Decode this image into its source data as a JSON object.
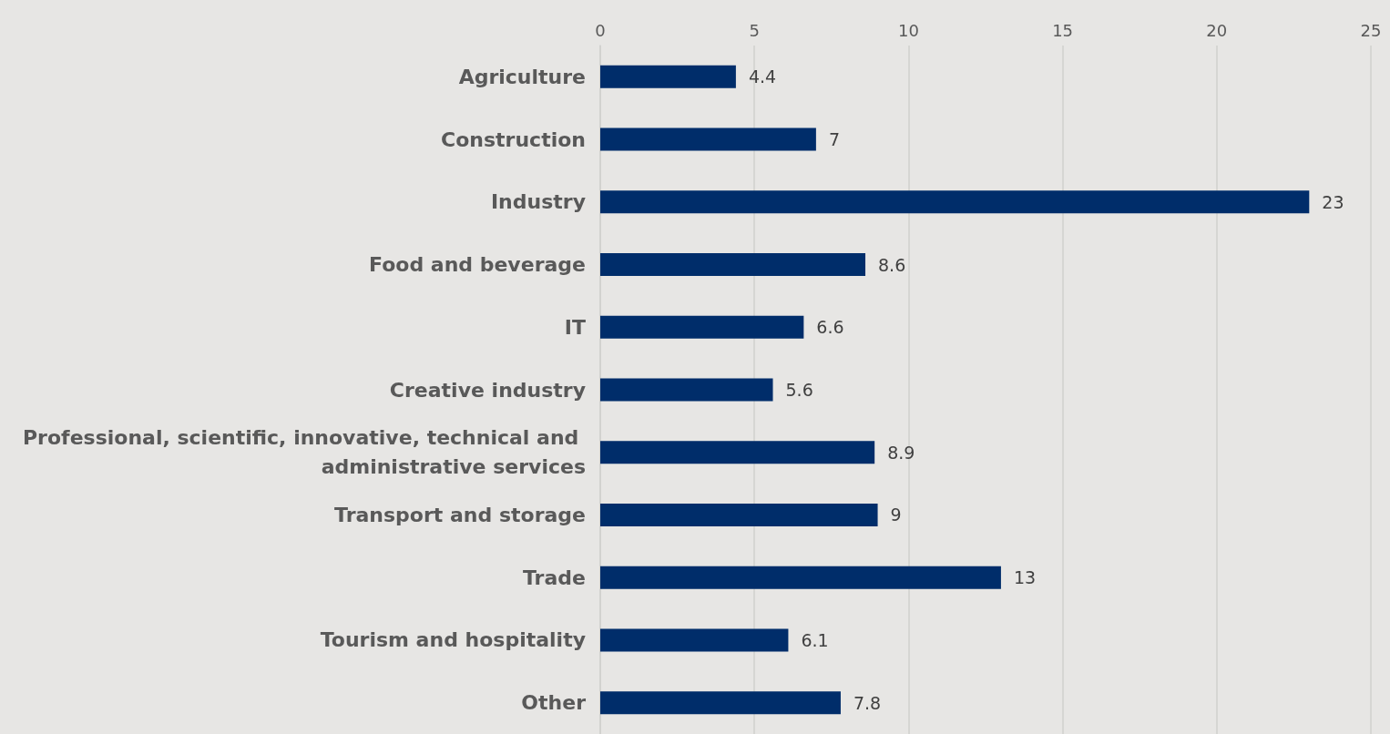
{
  "chart_data": {
    "type": "bar",
    "orientation": "horizontal",
    "categories": [
      "Agriculture",
      "Construction",
      "Industry",
      "Food and beverage",
      "IT",
      "Creative industry",
      "Professional, scientific, innovative, technical and administrative services",
      "Transport and storage",
      "Trade",
      "Tourism and hospitality",
      "Other"
    ],
    "values": [
      4.4,
      7,
      23,
      8.6,
      6.6,
      5.6,
      8.9,
      9,
      13,
      6.1,
      7.8
    ],
    "color": "#002d6a",
    "xlim": [
      0,
      25
    ],
    "xticks": [
      0,
      5,
      10,
      15,
      20,
      25
    ],
    "grid": "x",
    "data_labels": true
  }
}
